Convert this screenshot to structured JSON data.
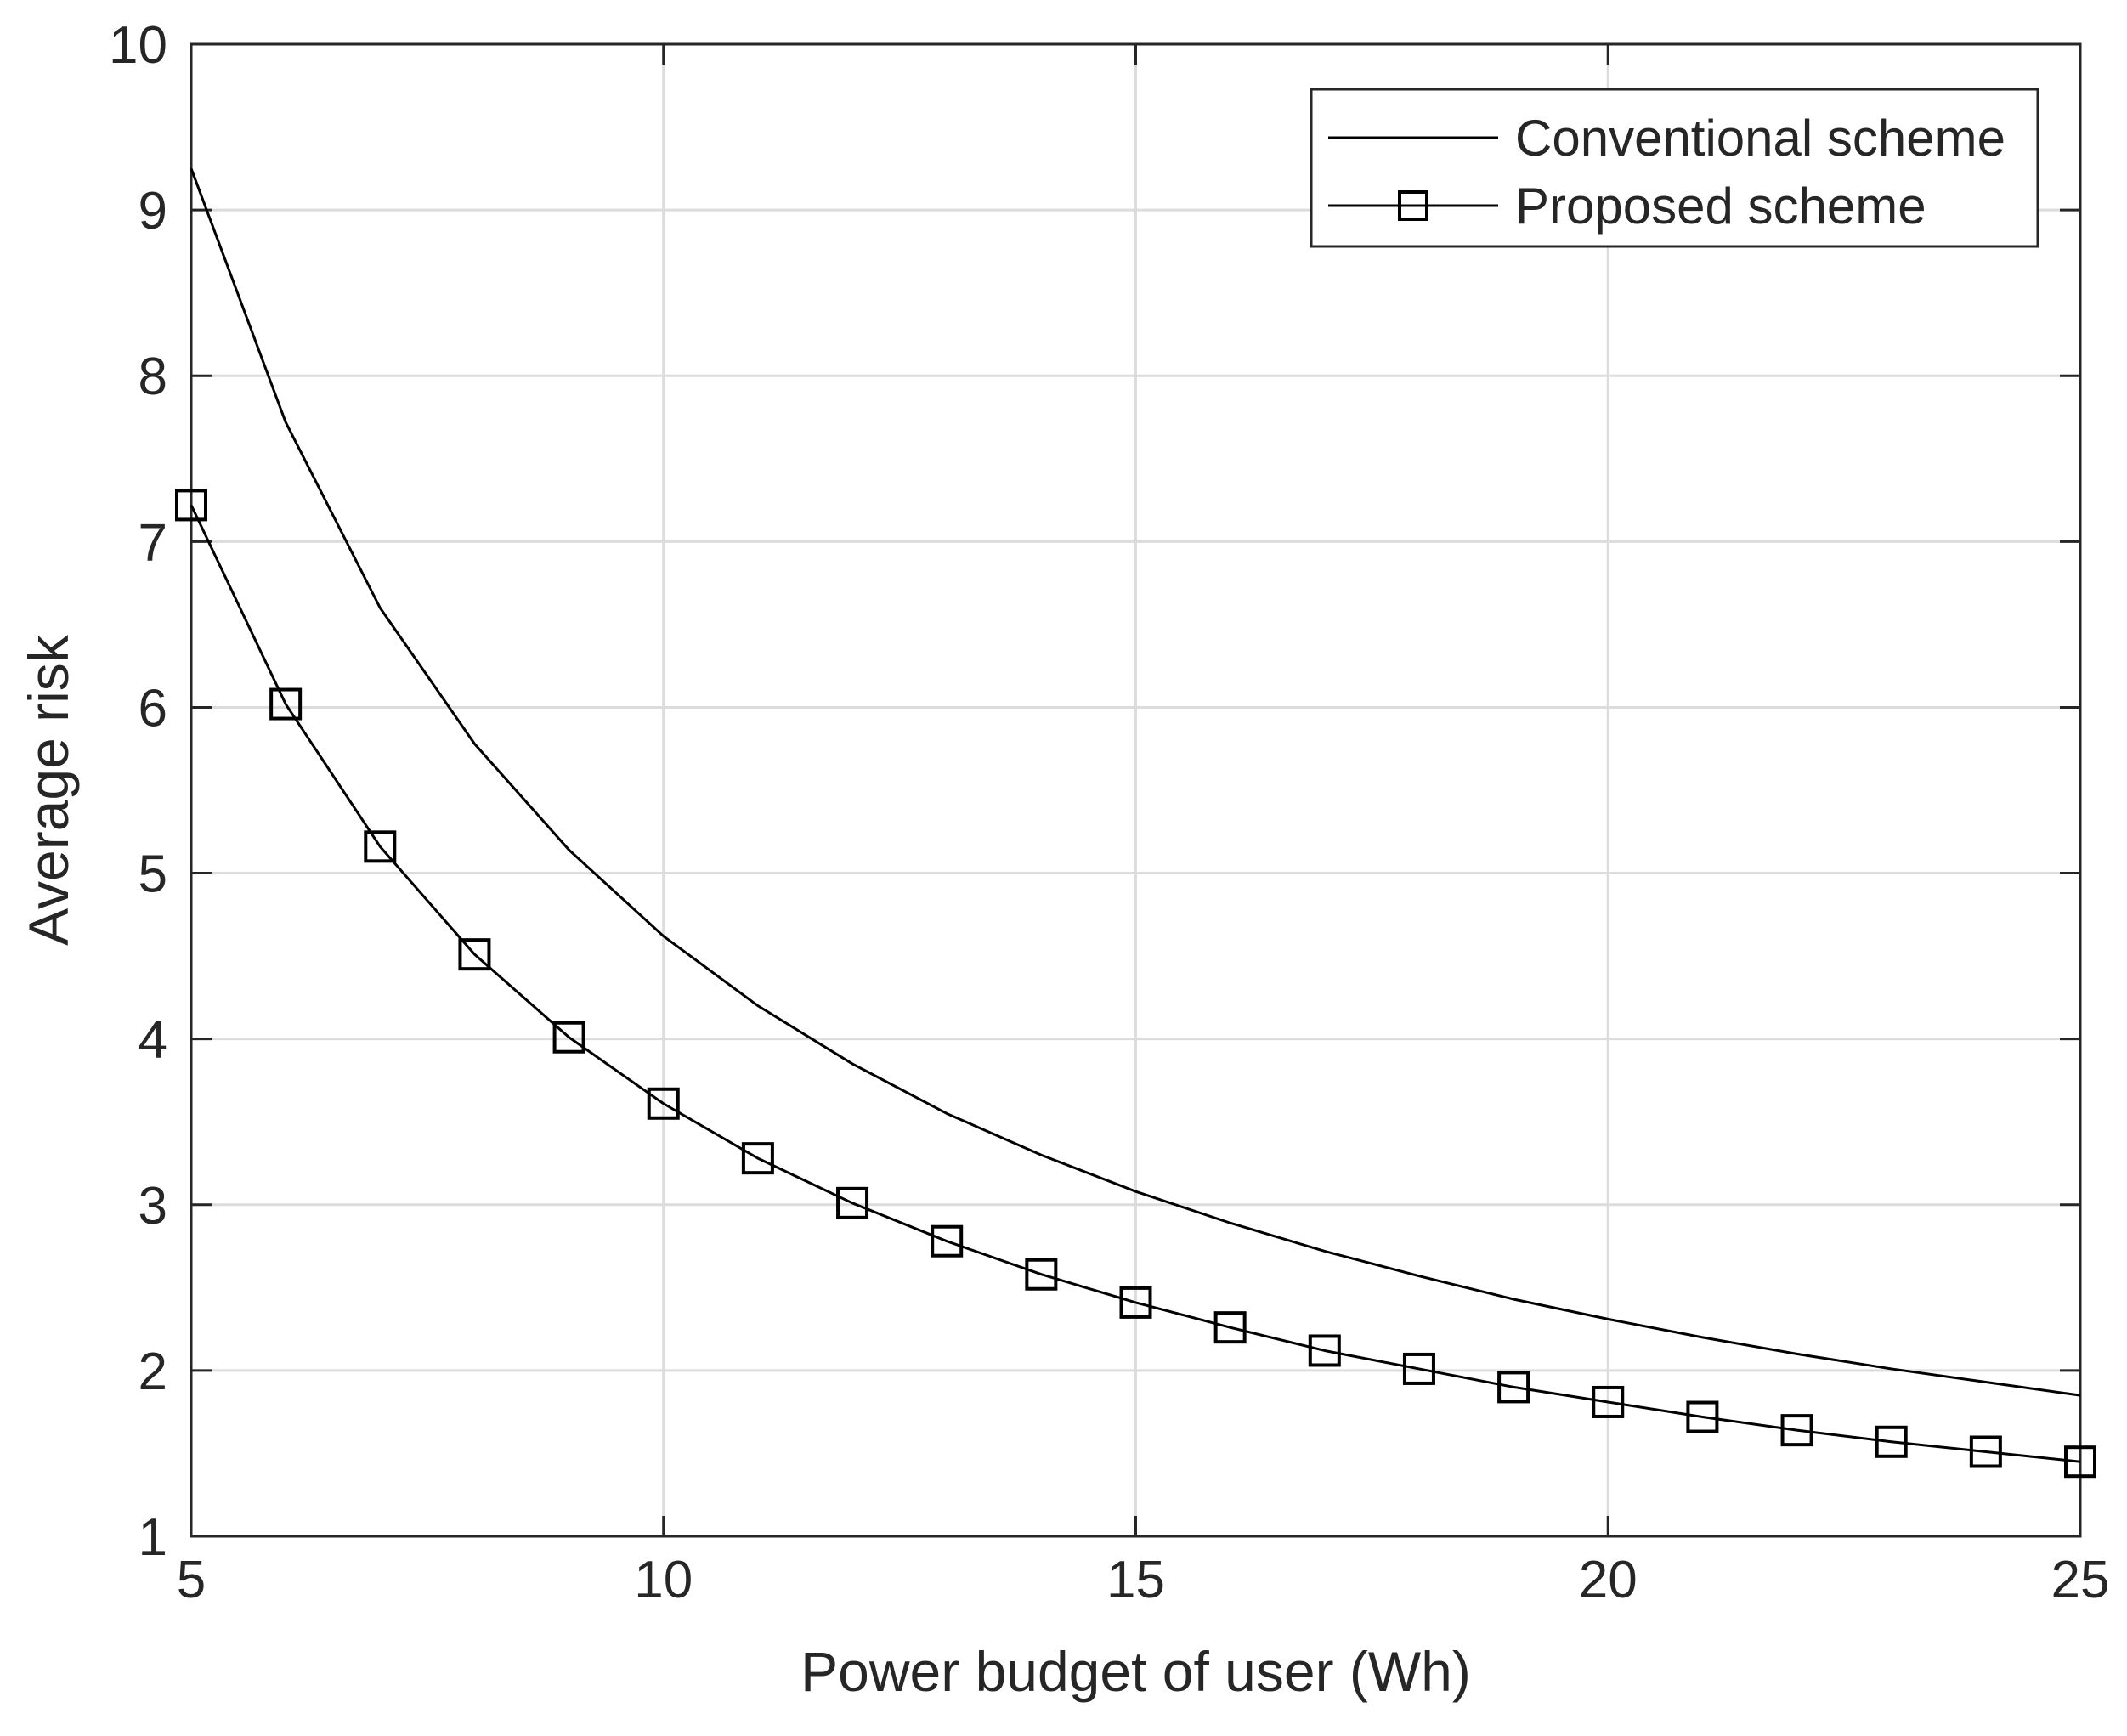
{
  "chart_data": {
    "type": "line",
    "title": "",
    "xlabel": "Power budget of user (Wh)",
    "ylabel": "Average risk",
    "xlim": [
      5,
      25
    ],
    "ylim": [
      1,
      10
    ],
    "xticks": [
      5,
      10,
      15,
      20,
      25
    ],
    "yticks": [
      1,
      2,
      3,
      4,
      5,
      6,
      7,
      8,
      9,
      10
    ],
    "grid": true,
    "legend_position": "top-right",
    "x": [
      5,
      6,
      7,
      8,
      9,
      10,
      11,
      12,
      13,
      14,
      15,
      16,
      17,
      18,
      19,
      20,
      21,
      22,
      23,
      24,
      25
    ],
    "series": [
      {
        "name": "Conventional scheme",
        "marker": "none",
        "color": "#000000",
        "values": [
          9.25,
          7.72,
          6.6,
          5.78,
          5.14,
          4.62,
          4.2,
          3.85,
          3.55,
          3.3,
          3.08,
          2.89,
          2.72,
          2.57,
          2.43,
          2.31,
          2.2,
          2.1,
          2.01,
          1.93,
          1.85
        ]
      },
      {
        "name": "Proposed scheme",
        "marker": "square",
        "color": "#000000",
        "values": [
          7.22,
          6.02,
          5.16,
          4.51,
          4.01,
          3.61,
          3.28,
          3.01,
          2.78,
          2.58,
          2.41,
          2.26,
          2.12,
          2.01,
          1.9,
          1.81,
          1.72,
          1.64,
          1.57,
          1.51,
          1.45
        ]
      }
    ]
  }
}
